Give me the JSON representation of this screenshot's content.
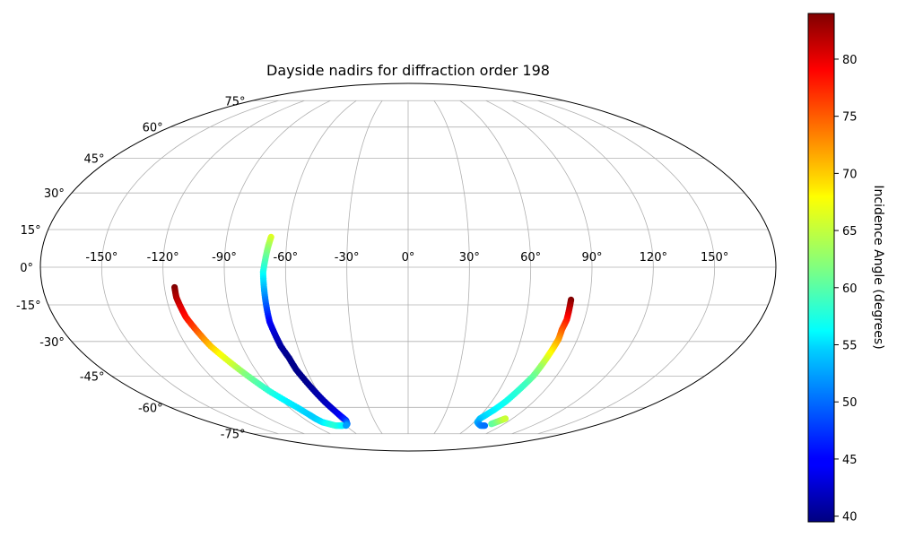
{
  "chart_data": {
    "type": "scatter",
    "projection": "mollweide",
    "title": "Dayside nadirs for diffraction order 198",
    "grid": true,
    "x_ticks": [
      "-150°",
      "-120°",
      "-90°",
      "-60°",
      "-30°",
      "0°",
      "30°",
      "60°",
      "90°",
      "120°",
      "150°"
    ],
    "x_tick_values": [
      -150,
      -120,
      -90,
      -60,
      -30,
      0,
      30,
      60,
      90,
      120,
      150
    ],
    "y_ticks": [
      "75°",
      "60°",
      "45°",
      "30°",
      "15°",
      "0°",
      "-15°",
      "-30°",
      "-45°",
      "-60°",
      "-75°"
    ],
    "y_tick_values": [
      75,
      60,
      45,
      30,
      15,
      0,
      -15,
      -30,
      -45,
      -60,
      -75
    ],
    "xlim": [
      -180,
      180
    ],
    "ylim": [
      -90,
      90
    ],
    "colorbar": {
      "label": "Incidence Angle (degrees)",
      "colormap": "jet",
      "range": [
        39.5,
        84
      ],
      "ticks": [
        "40",
        "45",
        "50",
        "55",
        "60",
        "65",
        "70",
        "75",
        "80"
      ],
      "tick_values": [
        40,
        45,
        50,
        55,
        60,
        65,
        70,
        75,
        80
      ]
    },
    "series": [
      {
        "points": [
          {
            "lon": -115,
            "lat": -8,
            "c": 84
          },
          {
            "lon": -115,
            "lat": -12,
            "c": 82
          },
          {
            "lon": -114,
            "lat": -16,
            "c": 80
          },
          {
            "lon": -113,
            "lat": -20,
            "c": 78
          },
          {
            "lon": -111,
            "lat": -24,
            "c": 76
          },
          {
            "lon": -109,
            "lat": -28,
            "c": 73
          },
          {
            "lon": -107,
            "lat": -32,
            "c": 70
          },
          {
            "lon": -104,
            "lat": -36,
            "c": 67
          },
          {
            "lon": -101,
            "lat": -40,
            "c": 65
          },
          {
            "lon": -98,
            "lat": -44,
            "c": 62
          },
          {
            "lon": -95,
            "lat": -48,
            "c": 60
          },
          {
            "lon": -92,
            "lat": -52,
            "c": 58
          },
          {
            "lon": -88,
            "lat": -56,
            "c": 56
          },
          {
            "lon": -84,
            "lat": -60,
            "c": 55
          },
          {
            "lon": -81,
            "lat": -64,
            "c": 54
          },
          {
            "lon": -80,
            "lat": -66,
            "c": 54
          },
          {
            "lon": -78,
            "lat": -68,
            "c": 55
          },
          {
            "lon": -74,
            "lat": -69,
            "c": 57
          },
          {
            "lon": -70,
            "lat": -70,
            "c": 58
          },
          {
            "lon": -66,
            "lat": -70,
            "c": 57
          },
          {
            "lon": -63,
            "lat": -70,
            "c": 56
          }
        ]
      },
      {
        "points": [
          {
            "lon": -68,
            "lat": 12,
            "c": 66
          },
          {
            "lon": -69,
            "lat": 8,
            "c": 63
          },
          {
            "lon": -70,
            "lat": 3,
            "c": 60
          },
          {
            "lon": -71,
            "lat": -2,
            "c": 57
          },
          {
            "lon": -71,
            "lat": -7,
            "c": 54
          },
          {
            "lon": -71,
            "lat": -12,
            "c": 51
          },
          {
            "lon": -71,
            "lat": -17,
            "c": 48
          },
          {
            "lon": -71,
            "lat": -22,
            "c": 45
          },
          {
            "lon": -70,
            "lat": -27,
            "c": 43
          },
          {
            "lon": -69,
            "lat": -32,
            "c": 41
          },
          {
            "lon": -67,
            "lat": -37,
            "c": 40
          },
          {
            "lon": -66,
            "lat": -42,
            "c": 40
          },
          {
            "lon": -64,
            "lat": -47,
            "c": 40
          },
          {
            "lon": -62,
            "lat": -52,
            "c": 41
          },
          {
            "lon": -60,
            "lat": -57,
            "c": 42
          },
          {
            "lon": -58,
            "lat": -61,
            "c": 43
          },
          {
            "lon": -56,
            "lat": -65,
            "c": 45
          },
          {
            "lon": -55,
            "lat": -67,
            "c": 47
          },
          {
            "lon": -57,
            "lat": -69,
            "c": 50
          },
          {
            "lon": -60,
            "lat": -70,
            "c": 52
          }
        ]
      },
      {
        "points": [
          {
            "lon": 81,
            "lat": -13,
            "c": 84
          },
          {
            "lon": 81,
            "lat": -17,
            "c": 81
          },
          {
            "lon": 81,
            "lat": -21,
            "c": 78
          },
          {
            "lon": 80,
            "lat": -25,
            "c": 75
          },
          {
            "lon": 80,
            "lat": -29,
            "c": 72
          },
          {
            "lon": 79,
            "lat": -33,
            "c": 69
          },
          {
            "lon": 78,
            "lat": -37,
            "c": 66
          },
          {
            "lon": 77,
            "lat": -41,
            "c": 63
          },
          {
            "lon": 76,
            "lat": -45,
            "c": 61
          },
          {
            "lon": 74,
            "lat": -49,
            "c": 59
          },
          {
            "lon": 72,
            "lat": -53,
            "c": 58
          },
          {
            "lon": 70,
            "lat": -57,
            "c": 57
          },
          {
            "lon": 67,
            "lat": -61,
            "c": 56
          },
          {
            "lon": 64,
            "lat": -64,
            "c": 55
          },
          {
            "lon": 62,
            "lat": -66,
            "c": 54
          },
          {
            "lon": 63,
            "lat": -68,
            "c": 53
          },
          {
            "lon": 66,
            "lat": -69,
            "c": 52
          },
          {
            "lon": 70,
            "lat": -70,
            "c": 51
          },
          {
            "lon": 74,
            "lat": -70,
            "c": 50
          }
        ]
      },
      {
        "points": [
          {
            "lon": 78,
            "lat": -69,
            "c": 60
          },
          {
            "lon": 80,
            "lat": -68,
            "c": 61
          },
          {
            "lon": 82,
            "lat": -67,
            "c": 63
          },
          {
            "lon": 84,
            "lat": -66,
            "c": 65
          }
        ]
      }
    ]
  }
}
